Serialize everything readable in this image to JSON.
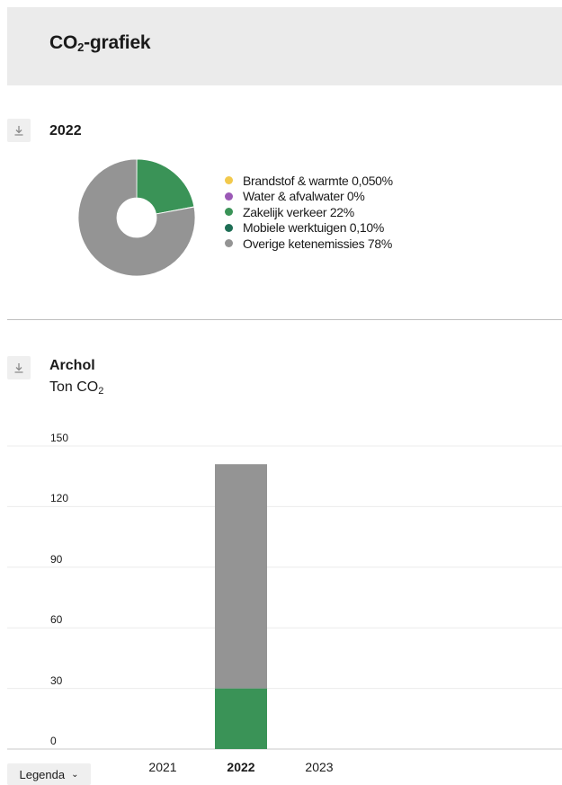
{
  "header": {
    "title_main": "CO",
    "title_sub": "2",
    "title_rest": "-grafiek"
  },
  "donut_section": {
    "year": "2022",
    "download_icon": "download-icon"
  },
  "bar_section": {
    "title": "Archol",
    "unit_main": "Ton CO",
    "unit_sub": "2",
    "download_icon": "download-icon"
  },
  "legend_button": {
    "label": "Legenda",
    "icon": "chevron-down-icon"
  },
  "colors": {
    "brandstof": "#f2c94c",
    "water": "#9b59b6",
    "zakelijk": "#3a9357",
    "mobiele": "#1e6e55",
    "overige": "#949494"
  },
  "chart_data": [
    {
      "type": "pie",
      "title": "2022",
      "donut": true,
      "legend_position": "right",
      "slices": [
        {
          "label": "Brandstof & warmte 0,050%",
          "value": 0.05,
          "color": "#f2c94c"
        },
        {
          "label": "Water & afvalwater 0%",
          "value": 0,
          "color": "#9b59b6"
        },
        {
          "label": "Zakelijk verkeer 22%",
          "value": 22,
          "color": "#3a9357"
        },
        {
          "label": "Mobiele werktuigen 0,10%",
          "value": 0.1,
          "color": "#1e6e55"
        },
        {
          "label": "Overige ketenemissies 78%",
          "value": 78,
          "color": "#949494"
        }
      ]
    },
    {
      "type": "bar",
      "stacked": true,
      "title": "Archol",
      "ylabel": "Ton CO2",
      "categories": [
        "2021",
        "2022",
        "2023"
      ],
      "active_category": "2022",
      "ylim": [
        0,
        150
      ],
      "yticks": [
        "0",
        "30",
        "60",
        "90",
        "120",
        "150"
      ],
      "grid": true,
      "series": [
        {
          "name": "Zakelijk verkeer",
          "values": [
            0,
            30,
            0
          ],
          "color": "#3a9357"
        },
        {
          "name": "Overige ketenemissies",
          "values": [
            0,
            111,
            0
          ],
          "color": "#949494"
        }
      ]
    }
  ]
}
